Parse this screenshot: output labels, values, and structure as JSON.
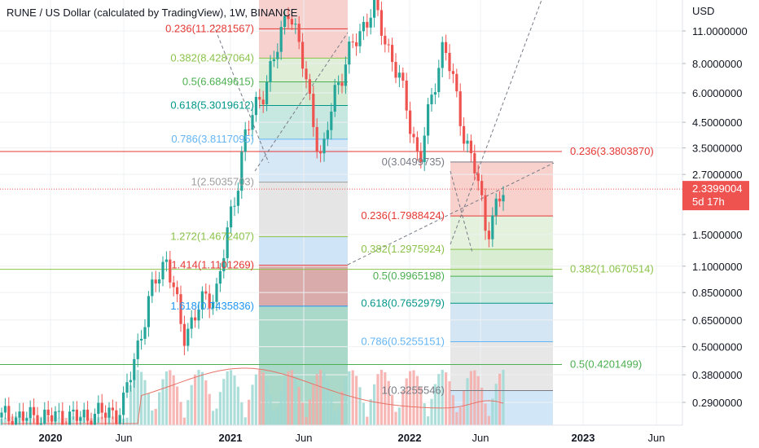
{
  "title": "RUNE / US Dollar (calculated by TradingView), 1W, BINANCE",
  "currency": "USD",
  "chart_data": {
    "type": "candlestick",
    "symbol": "RUNE / US Dollar",
    "interval": "1W",
    "exchange": "BINANCE",
    "y_scale": "log",
    "ylim": [
      0.24,
      14.5
    ],
    "y_ticks": [
      "11.0000000",
      "8.0000000",
      "6.0000000",
      "4.5000000",
      "3.5000000",
      "2.7000000",
      "1.5000000",
      "1.1000000",
      "0.8500000",
      "0.6500000",
      "0.5000000",
      "0.3800000",
      "0.2900000"
    ],
    "x_ticks": [
      "2020",
      "Jun",
      "2021",
      "Jun",
      "2022",
      "Jun",
      "2023",
      "Jun"
    ],
    "current_price": {
      "label": "2.3399004",
      "countdown": "5d 17h",
      "value": 2.3399004
    },
    "horizontal_lines": [
      {
        "label": "0.236(3.3803870)",
        "value": 3.380387,
        "color": "#e53935"
      },
      {
        "label": "0.382(1.0670514)",
        "value": 1.0670514,
        "color": "#8bc34a"
      },
      {
        "label": "0.5(0.4201499)",
        "value": 0.4201499,
        "color": "#4caf50"
      }
    ],
    "fib_retracement_1": {
      "levels": [
        {
          "label": "0.236(11.2281567)",
          "value": 11.2281567
        },
        {
          "label": "0.382(8.4287064)",
          "value": 8.4287064
        },
        {
          "label": "0.5(6.6849615)",
          "value": 6.6849615
        },
        {
          "label": "0.618(5.3019612)",
          "value": 5.3019612
        },
        {
          "label": "0.786(3.8117095)",
          "value": 3.8117095
        },
        {
          "label": "1(2.5035703)",
          "value": 2.5035703
        },
        {
          "label": "1.272(1.4672407)",
          "value": 1.4672407
        },
        {
          "label": "1.414(1.1101269)",
          "value": 1.1101269
        },
        {
          "label": "1.618(0.7435836)",
          "value": 0.7435836
        }
      ]
    },
    "fib_retracement_2": {
      "levels": [
        {
          "label": "0(3.0499735)",
          "value": 3.0499735
        },
        {
          "label": "0.236(1.7988424)",
          "value": 1.7988424
        },
        {
          "label": "0.382(1.2975924)",
          "value": 1.2975924
        },
        {
          "label": "0.5(0.9965198)",
          "value": 0.9965198
        },
        {
          "label": "0.618(0.7652979)",
          "value": 0.7652979
        },
        {
          "label": "0.786(0.5255151)",
          "value": 0.5255151
        },
        {
          "label": "1(0.3255546)",
          "value": 0.3255546
        }
      ]
    },
    "key_prices": {
      "start": 0.25,
      "high_2021_may": 14.5,
      "low_2021_jul": 3.0,
      "high_2021_dec": 14.0,
      "low_2022_feb": 3.05,
      "low_2022_jun": 1.35
    }
  },
  "colors": {
    "up": "#26a69a",
    "down": "#ef5350",
    "grid": "#eef0f3",
    "price_tag": "#ef5350",
    "axis_text": "#131722"
  }
}
